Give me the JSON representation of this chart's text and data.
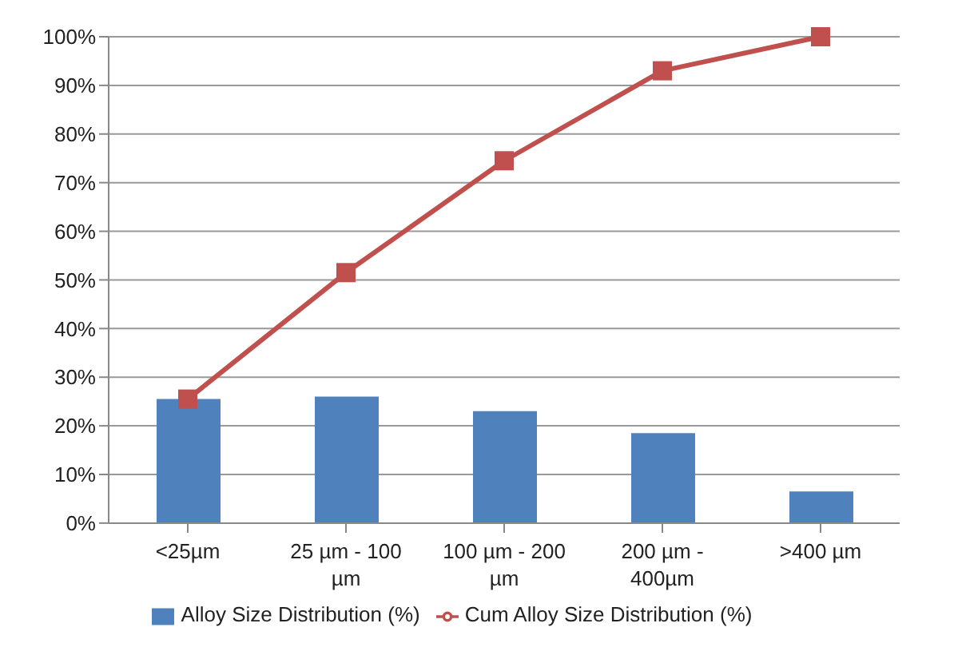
{
  "chart_data": {
    "type": "bar",
    "categories": [
      "<25µm",
      "25 µm - 100 µm",
      "100 µm - 200 µm",
      "200 µm - 400µm",
      ">400 µm"
    ],
    "series": [
      {
        "name": "Alloy Size Distribution (%)",
        "color": "#4f81bd",
        "values": [
          25.5,
          26,
          23,
          18.5,
          6.5
        ]
      },
      {
        "name": "Cum Alloy Size Distribution (%)",
        "type": "line",
        "color": "#c0504d",
        "values": [
          25.5,
          51.5,
          74.5,
          93,
          100
        ]
      }
    ],
    "ylim": [
      0,
      100
    ],
    "yticks": [
      {
        "value": 0,
        "label": "0%"
      },
      {
        "value": 10,
        "label": "10%"
      },
      {
        "value": 20,
        "label": "20%"
      },
      {
        "value": 30,
        "label": "30%"
      },
      {
        "value": 40,
        "label": "40%"
      },
      {
        "value": 50,
        "label": "50%"
      },
      {
        "value": 60,
        "label": "60%"
      },
      {
        "value": 70,
        "label": "70%"
      },
      {
        "value": 80,
        "label": "80%"
      },
      {
        "value": 90,
        "label": "90%"
      },
      {
        "value": 100,
        "label": "100%"
      }
    ],
    "grid": "y",
    "legend": "bottom",
    "marker": "square"
  }
}
